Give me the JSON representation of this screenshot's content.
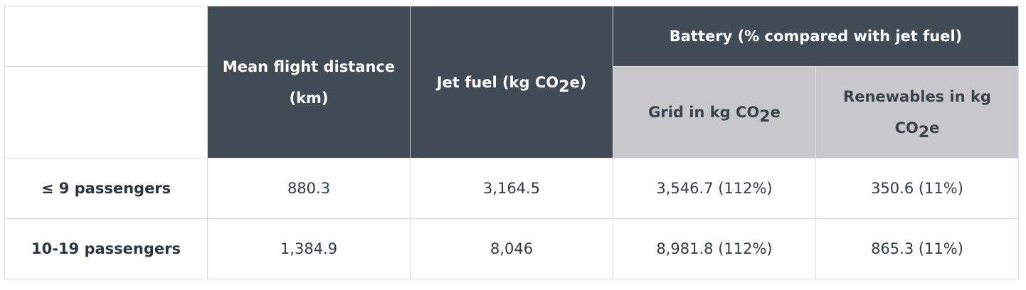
{
  "header": {
    "mean_distance": "Mean flight distance (km)",
    "jet_fuel_pre": "Jet fuel (kg CO",
    "jet_fuel_sub": "2",
    "jet_fuel_post": "e)",
    "battery_group": "Battery (% compared with jet fuel)",
    "grid_pre": "Grid in kg CO",
    "grid_sub": "2",
    "grid_post": "e",
    "renew_pre": "Renewables in kg CO",
    "renew_sub": "2",
    "renew_post": "e"
  },
  "rows": [
    {
      "label": "≤ 9 passengers",
      "distance": "880.3",
      "jet_fuel": "3,164.5",
      "grid": "3,546.7 (112%)",
      "renewables": "350.6 (11%)"
    },
    {
      "label": "10-19 passengers",
      "distance": "1,384.9",
      "jet_fuel": "8,046",
      "grid": "8,981.8 (112%)",
      "renewables": "865.3 (11%)"
    }
  ],
  "colors": {
    "dark_header": "#414b55",
    "light_header": "#c8c7cc"
  }
}
